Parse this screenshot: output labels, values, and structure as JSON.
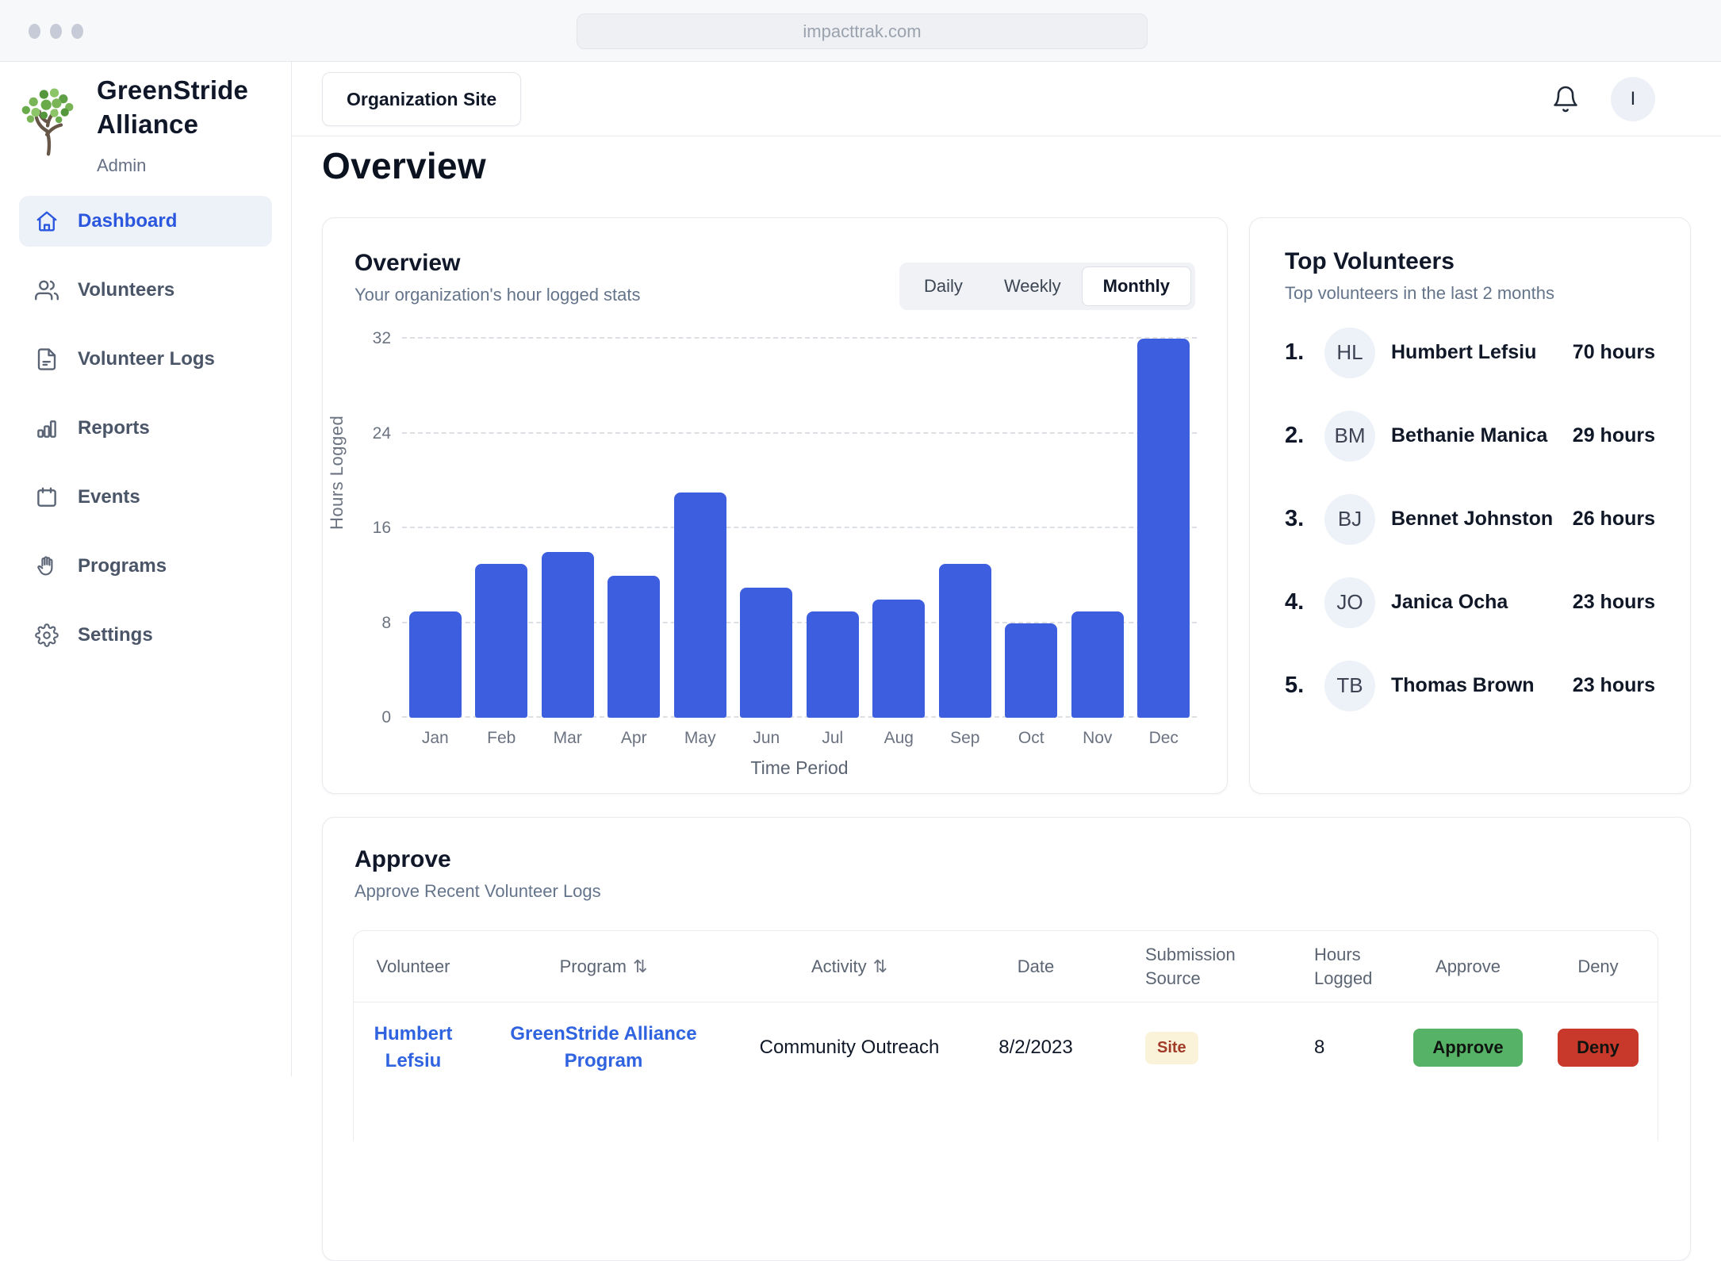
{
  "browser": {
    "url": "impacttrak.com"
  },
  "sidebar": {
    "org_line1": "GreenStride",
    "org_line2": "Alliance",
    "role": "Admin",
    "items": [
      {
        "label": "Dashboard",
        "icon": "home",
        "active": true
      },
      {
        "label": "Volunteers",
        "icon": "users",
        "active": false
      },
      {
        "label": "Volunteer Logs",
        "icon": "document",
        "active": false
      },
      {
        "label": "Reports",
        "icon": "bar-chart",
        "active": false
      },
      {
        "label": "Events",
        "icon": "calendar",
        "active": false
      },
      {
        "label": "Programs",
        "icon": "hand",
        "active": false
      },
      {
        "label": "Settings",
        "icon": "gear",
        "active": false
      }
    ]
  },
  "topbar": {
    "site_button": "Organization Site",
    "avatar_initial": "I"
  },
  "page": {
    "title": "Overview"
  },
  "overview_card": {
    "title": "Overview",
    "subtitle": "Your organization's hour logged stats",
    "toggles": [
      "Daily",
      "Weekly",
      "Monthly"
    ],
    "active_toggle": "Monthly"
  },
  "chart_data": {
    "type": "bar",
    "title": "Overview",
    "categories": [
      "Jan",
      "Feb",
      "Mar",
      "Apr",
      "May",
      "Jun",
      "Jul",
      "Aug",
      "Sep",
      "Oct",
      "Nov",
      "Dec"
    ],
    "values": [
      9,
      13,
      14,
      12,
      19,
      11,
      9,
      10,
      13,
      8,
      9,
      32
    ],
    "xlabel": "Time Period",
    "ylabel": "Hours Logged",
    "ylim": [
      0,
      32
    ],
    "yticks": [
      0,
      8,
      16,
      24,
      32
    ],
    "grid": "horizontal-dashed",
    "legend": "none",
    "bar_color": "#3e5ee0"
  },
  "top_volunteers": {
    "title": "Top Volunteers",
    "subtitle": "Top volunteers in the last 2 months",
    "rows": [
      {
        "rank": "1.",
        "initials": "HL",
        "name": "Humbert Lefsiu",
        "hours": "70 hours"
      },
      {
        "rank": "2.",
        "initials": "BM",
        "name": "Bethanie Manica",
        "hours": "29 hours"
      },
      {
        "rank": "3.",
        "initials": "BJ",
        "name": "Bennet Johnston",
        "hours": "26 hours"
      },
      {
        "rank": "4.",
        "initials": "JO",
        "name": "Janica Ocha",
        "hours": "23 hours"
      },
      {
        "rank": "5.",
        "initials": "TB",
        "name": "Thomas Brown",
        "hours": "23 hours"
      }
    ]
  },
  "approve_card": {
    "title": "Approve",
    "subtitle": "Approve Recent Volunteer Logs",
    "sort_icon": "⇅",
    "columns": {
      "volunteer": "Volunteer",
      "program": "Program",
      "activity": "Activity",
      "date": "Date",
      "source": "Submission Source",
      "hours": "Hours Logged",
      "approve": "Approve",
      "deny": "Deny"
    },
    "rows": [
      {
        "volunteer": "Humbert Lefsiu",
        "program": "GreenStride Alliance Program",
        "activity": "Community Outreach",
        "date": "8/2/2023",
        "source": "Site",
        "hours": "8",
        "approve_label": "Approve",
        "deny_label": "Deny"
      }
    ]
  },
  "colors": {
    "accent_blue": "#2b57df",
    "bar_blue": "#3e5ee0",
    "link_blue": "#2f63e0",
    "approve_green": "#55b266",
    "deny_red": "#c8392b",
    "badge_bg": "#faf3da",
    "badge_text": "#a03c27"
  }
}
